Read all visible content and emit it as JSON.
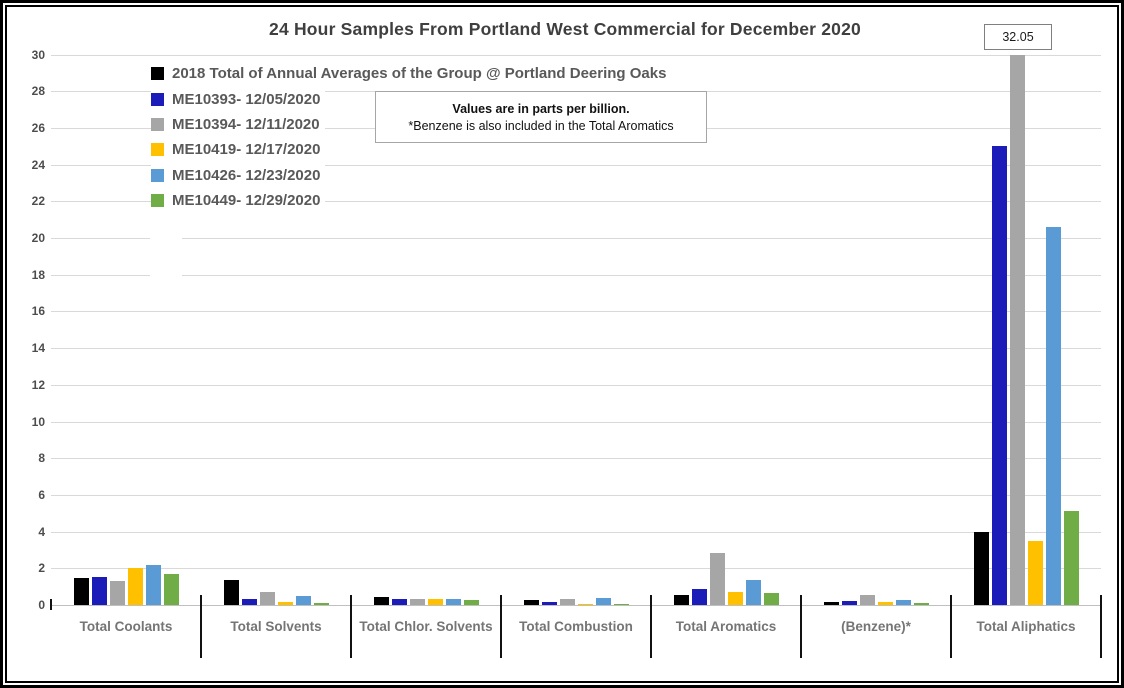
{
  "chart_data": {
    "type": "bar",
    "title": "24 Hour Samples From Portland West Commercial for December 2020",
    "note": {
      "line1": "Values are in parts per billion.",
      "line2": "*Benzene is also included in the Total Aromatics"
    },
    "unit": "parts per billion",
    "categories": [
      "Total Coolants",
      "Total Solvents",
      "Total Chlor. Solvents",
      "Total Combustion",
      "Total Aromatics",
      "(Benzene)*",
      "Total Aliphatics"
    ],
    "series": [
      {
        "name": "2018 Total of Annual Averages of the Group @ Portland Deering Oaks",
        "color": "#000000",
        "values": [
          1.45,
          1.35,
          0.45,
          0.28,
          0.55,
          0.18,
          4.0
        ]
      },
      {
        "name": "ME10393- 12/05/2020",
        "color": "#1c1cb8",
        "values": [
          1.5,
          0.3,
          0.3,
          0.19,
          0.85,
          0.24,
          25.0
        ]
      },
      {
        "name": "ME10394- 12/11/2020",
        "color": "#a6a6a6",
        "values": [
          1.3,
          0.7,
          0.35,
          0.3,
          2.85,
          0.52,
          32.05
        ]
      },
      {
        "name": "ME10419- 12/17/2020",
        "color": "#ffc000",
        "values": [
          2.0,
          0.18,
          0.33,
          0.08,
          0.7,
          0.15,
          3.5
        ]
      },
      {
        "name": "ME10426- 12/23/2020",
        "color": "#5b9bd5",
        "values": [
          2.2,
          0.5,
          0.35,
          0.37,
          1.35,
          0.28,
          20.6
        ]
      },
      {
        "name": "ME10449- 12/29/2020",
        "color": "#70ad47",
        "values": [
          1.7,
          0.09,
          0.25,
          0.06,
          0.65,
          0.09,
          5.1
        ]
      }
    ],
    "ylim": [
      0,
      30
    ],
    "ytick_step": 2,
    "grid": true,
    "legend_position": "top-left-inside",
    "callout": {
      "text": "32.05",
      "series": "ME10394- 12/11/2020",
      "category": "Total Aliphatics",
      "note": "bar clipped at axis max 30"
    }
  }
}
